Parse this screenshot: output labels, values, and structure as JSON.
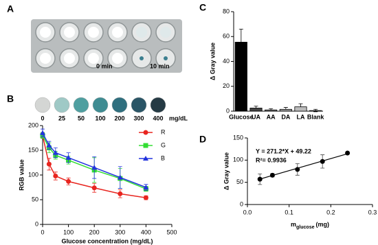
{
  "photo": {
    "label": "A",
    "annotations": [
      "0 min",
      "10 min"
    ]
  },
  "chart_data": [
    {
      "type": "line",
      "label": "B",
      "strip": {
        "labels": [
          0,
          25,
          50,
          100,
          200,
          300,
          400
        ],
        "unit": "mg/dL",
        "colors": [
          "#d4d6d4",
          "#9fc9c6",
          "#4f9fa0",
          "#3f8c92",
          "#2f6f7e",
          "#2a5566",
          "#253a44"
        ]
      },
      "xlabel": "Glucose concentration (mg/dL)",
      "ylabel": "RGB value",
      "x": [
        0,
        25,
        50,
        100,
        200,
        300,
        400
      ],
      "series": [
        {
          "name": "R",
          "color": "#e8251f",
          "marker": "circle",
          "values": [
            180,
            122,
            98,
            87,
            74,
            62,
            54
          ],
          "errors": [
            5,
            12,
            8,
            7,
            9,
            8,
            4
          ]
        },
        {
          "name": "G",
          "color": "#33dd33",
          "marker": "square",
          "values": [
            180,
            155,
            140,
            130,
            110,
            93,
            72
          ],
          "errors": [
            6,
            10,
            8,
            8,
            25,
            20,
            5
          ]
        },
        {
          "name": "B",
          "color": "#2233dd",
          "marker": "triangle",
          "values": [
            185,
            160,
            145,
            135,
            115,
            95,
            75
          ],
          "errors": [
            8,
            8,
            10,
            10,
            22,
            22,
            6
          ]
        }
      ],
      "xlim": [
        0,
        500
      ],
      "xticks": [
        0,
        100,
        200,
        300,
        400,
        500
      ],
      "ylim": [
        0,
        200
      ],
      "yticks": [
        0,
        50,
        100,
        150,
        200
      ],
      "legend": "upper right"
    },
    {
      "type": "bar",
      "label": "C",
      "ylabel": "Δ Gray value",
      "categories": [
        "Glucose",
        "UA",
        "AA",
        "DA",
        "LA",
        "Blank"
      ],
      "values": [
        55.5,
        2.5,
        1,
        1.5,
        3.5,
        0.5
      ],
      "errors": [
        10.5,
        1.5,
        1,
        1.5,
        2.5,
        1
      ],
      "colors": [
        "#000000",
        "#444444",
        "#777777",
        "#999999",
        "#bbbbbb",
        "#dddddd"
      ],
      "ylim": [
        0,
        80
      ],
      "yticks": [
        0,
        20,
        40,
        60,
        80
      ]
    },
    {
      "type": "scatter",
      "label": "D",
      "ylabel": "Δ Gray value",
      "xlabel": "m",
      "xlabel_sub": "glucose",
      "xlabel_unit": "(mg)",
      "x": [
        0.03,
        0.06,
        0.12,
        0.18,
        0.24
      ],
      "values": [
        57,
        66,
        79,
        97,
        116
      ],
      "errors": [
        12,
        4,
        13,
        15,
        2
      ],
      "color": "#000000",
      "fit": {
        "slope": 271.2,
        "intercept": 49.22
      },
      "annotations": [
        "Y = 271.2*X + 49.22",
        "R²= 0.9936"
      ],
      "xlim": [
        0,
        0.3
      ],
      "xticks": [
        {
          "value": 0,
          "label": "0.0"
        },
        0.1,
        0.2,
        0.3
      ],
      "ylim": [
        0,
        150
      ],
      "yticks": [
        0,
        50,
        100,
        150
      ]
    }
  ]
}
